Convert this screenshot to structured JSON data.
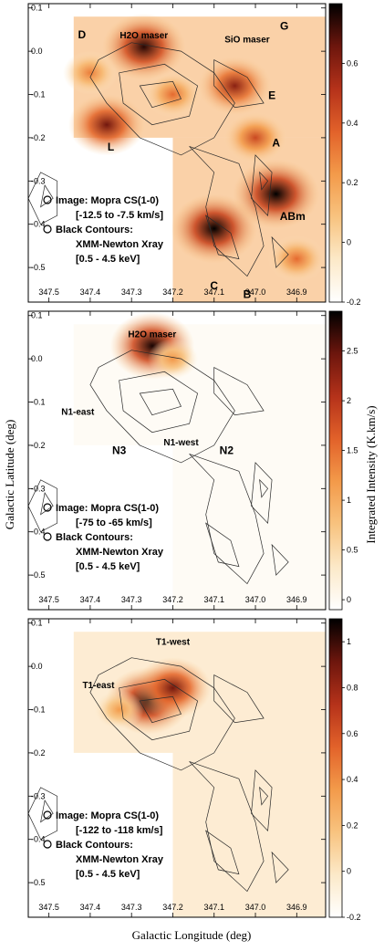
{
  "figure": {
    "ylabel": "Galactic Latitude (deg)",
    "xlabel": "Galactic Longitude (deg)",
    "colorbar_label": "Integrated Intensity (K.km/s)"
  },
  "colors": {
    "colormap": [
      "#ffffff",
      "#fce9c8",
      "#f8c37f",
      "#f39a4a",
      "#e2622a",
      "#b5321a",
      "#6d160d",
      "#000000"
    ],
    "contour": "#2a2a2a",
    "frame": "#000000"
  },
  "chart_data": [
    {
      "type": "heatmap",
      "panel": "top",
      "x_range": [
        347.55,
        346.83
      ],
      "y_range": [
        -0.58,
        0.11
      ],
      "x_ticks": [
        "347.5",
        "347.4",
        "347.3",
        "347.2",
        "347.1",
        "347.0",
        "346.9"
      ],
      "y_ticks": [
        "0.1",
        "0.0",
        "-0.1",
        "-0.2",
        "-0.3",
        "-0.4",
        "-0.5"
      ],
      "colorbar": {
        "range": [
          -0.2,
          0.8
        ],
        "ticks": [
          "0.6",
          "0.4",
          "0.2",
          "0",
          "-0.2"
        ]
      },
      "legend": [
        "Image: Mopra CS(1-0)",
        "[-12.5 to -7.5 km/s]",
        "Black Contours:",
        "XMM-Newton Xray",
        "[0.5 - 4.5 keV]"
      ],
      "annotations": [
        {
          "text": "H2O maser",
          "l": 347.27,
          "b": 0.03
        },
        {
          "text": "SiO maser",
          "l": 347.02,
          "b": 0.02
        },
        {
          "text": "D",
          "l": 347.42,
          "b": 0.03
        },
        {
          "text": "G",
          "l": 346.93,
          "b": 0.05
        },
        {
          "text": "E",
          "l": 346.96,
          "b": -0.11
        },
        {
          "text": "A",
          "l": 346.95,
          "b": -0.22
        },
        {
          "text": "L",
          "l": 347.35,
          "b": -0.23
        },
        {
          "text": "ABm",
          "l": 346.91,
          "b": -0.39
        },
        {
          "text": "C",
          "l": 347.1,
          "b": -0.55
        },
        {
          "text": "B",
          "l": 347.02,
          "b": -0.57
        }
      ],
      "emission": [
        {
          "l": 347.27,
          "b": 0.01,
          "intensity": 0.75
        },
        {
          "l": 347.05,
          "b": -0.08,
          "intensity": 0.6
        },
        {
          "l": 347.36,
          "b": -0.17,
          "intensity": 0.65
        },
        {
          "l": 347.1,
          "b": -0.41,
          "intensity": 0.8
        },
        {
          "l": 346.95,
          "b": -0.33,
          "intensity": 0.8
        },
        {
          "l": 347.0,
          "b": -0.2,
          "intensity": 0.45
        },
        {
          "l": 347.2,
          "b": -0.1,
          "intensity": 0.35
        },
        {
          "l": 347.4,
          "b": -0.05,
          "intensity": 0.3
        },
        {
          "l": 346.9,
          "b": -0.48,
          "intensity": 0.35
        }
      ]
    },
    {
      "type": "heatmap",
      "panel": "middle",
      "x_range": [
        347.55,
        346.83
      ],
      "y_range": [
        -0.58,
        0.11
      ],
      "x_ticks": [
        "347.5",
        "347.4",
        "347.3",
        "347.2",
        "347.1",
        "347.0",
        "346.9"
      ],
      "y_ticks": [
        "0.1",
        "0.0",
        "-0.1",
        "-0.2",
        "-0.3",
        "-0.4",
        "-0.5"
      ],
      "colorbar": {
        "range": [
          -0.1,
          2.9
        ],
        "ticks": [
          "2.5",
          "2",
          "1.5",
          "1",
          "0.5",
          "0"
        ]
      },
      "legend": [
        "Image: Mopra CS(1-0)",
        "[-75 to -65 km/s]",
        "Black Contours:",
        "XMM-Newton Xray",
        "[0.5 - 4.5 keV]"
      ],
      "annotations": [
        {
          "text": "H2O maser",
          "l": 347.25,
          "b": 0.05
        },
        {
          "text": "N1-east",
          "l": 347.43,
          "b": -0.13
        },
        {
          "text": "N3",
          "l": 347.33,
          "b": -0.22
        },
        {
          "text": "N1-west",
          "l": 347.18,
          "b": -0.2
        },
        {
          "text": "N2",
          "l": 347.07,
          "b": -0.22
        }
      ],
      "emission": [
        {
          "l": 347.25,
          "b": 0.03,
          "intensity": 2.8
        },
        {
          "l": 347.2,
          "b": 0.0,
          "intensity": 1.2
        }
      ]
    },
    {
      "type": "heatmap",
      "panel": "bottom",
      "x_range": [
        347.55,
        346.83
      ],
      "y_range": [
        -0.58,
        0.11
      ],
      "x_ticks": [
        "347.5",
        "347.4",
        "347.3",
        "347.2",
        "347.1",
        "347.0",
        "346.9"
      ],
      "y_ticks": [
        "0.1",
        "0.0",
        "-0.1",
        "-0.2",
        "-0.3",
        "-0.4",
        "-0.5"
      ],
      "colorbar": {
        "range": [
          -0.2,
          1.1
        ],
        "ticks": [
          "1",
          "0.8",
          "0.6",
          "0.4",
          "0.2",
          "0",
          "-0.2"
        ]
      },
      "legend": [
        "Image: Mopra CS(1-0)",
        "[-122 to -118 km/s]",
        "Black Contours:",
        "XMM-Newton Xray",
        "[0.5 - 4.5 keV]"
      ],
      "annotations": [
        {
          "text": "T1-west",
          "l": 347.2,
          "b": 0.05
        },
        {
          "text": "T1-east",
          "l": 347.38,
          "b": -0.05
        }
      ],
      "emission": [
        {
          "l": 347.26,
          "b": -0.08,
          "intensity": 1.05
        },
        {
          "l": 347.2,
          "b": -0.05,
          "intensity": 0.9
        },
        {
          "l": 347.33,
          "b": -0.1,
          "intensity": 0.35
        }
      ]
    }
  ]
}
